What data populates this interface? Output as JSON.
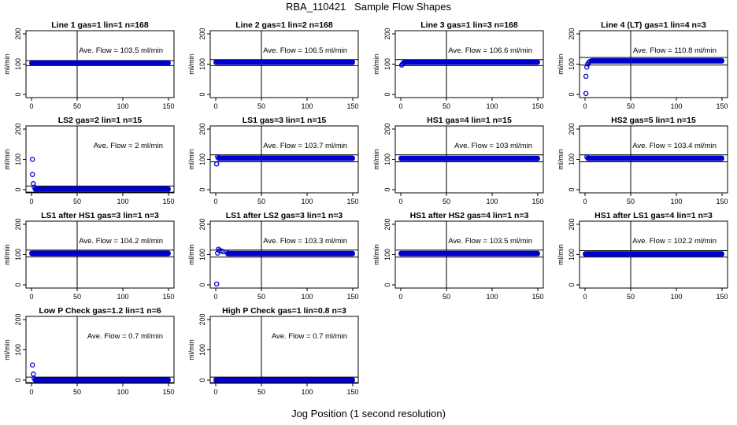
{
  "figure": {
    "title": "RBA_110421   Sample Flow Shapes",
    "xlabel": "Jog Position (1 second resolution)"
  },
  "colors": {
    "points": "#0000cc",
    "axis": "#000000"
  },
  "chart_data": [
    {
      "type": "scatter",
      "title": "Line 1 gas=1 lin=1 n=168",
      "ylabel": "ml/min",
      "annotation": "Ave. Flow = 103.5  ml/min",
      "xlim": [
        0,
        150
      ],
      "ylim": [
        0,
        200
      ],
      "xticks": [
        0,
        50,
        100,
        150
      ],
      "yticks": [
        0,
        100,
        200
      ],
      "vline": 50,
      "hlines": [
        95,
        112
      ],
      "flow": 103.5,
      "start": []
    },
    {
      "type": "scatter",
      "title": "Line 2 gas=1 lin=2 n=168",
      "ylabel": "ml/min",
      "annotation": "Ave. Flow = 106.5  ml/min",
      "xlim": [
        0,
        150
      ],
      "ylim": [
        0,
        200
      ],
      "xticks": [
        0,
        50,
        100,
        150
      ],
      "yticks": [
        0,
        100,
        200
      ],
      "vline": 50,
      "hlines": [
        95,
        115
      ],
      "flow": 106.5,
      "start": []
    },
    {
      "type": "scatter",
      "title": "Line 3 gas=1 lin=3 n=168",
      "ylabel": "ml/min",
      "annotation": "Ave. Flow = 106.6  ml/min",
      "xlim": [
        0,
        150
      ],
      "ylim": [
        0,
        200
      ],
      "xticks": [
        0,
        50,
        100,
        150
      ],
      "yticks": [
        0,
        100,
        200
      ],
      "vline": 50,
      "hlines": [
        95,
        115
      ],
      "flow": 106.6,
      "start": [
        [
          1,
          97
        ],
        [
          2,
          101
        ],
        [
          3,
          104
        ]
      ]
    },
    {
      "type": "scatter",
      "title": "Line 4 (LT) gas=1 lin=4 n=3",
      "ylabel": "ml/min",
      "annotation": "Ave. Flow = 110.8  ml/min",
      "xlim": [
        0,
        150
      ],
      "ylim": [
        0,
        200
      ],
      "xticks": [
        0,
        50,
        100,
        150
      ],
      "yticks": [
        0,
        100,
        200
      ],
      "vline": 50,
      "hlines": [
        97,
        122
      ],
      "flow": 110.8,
      "start": [
        [
          1,
          3
        ],
        [
          1,
          60
        ],
        [
          2,
          90
        ],
        [
          3,
          100
        ],
        [
          4,
          105
        ],
        [
          5,
          108
        ],
        [
          7,
          111
        ]
      ]
    },
    {
      "type": "scatter",
      "title": "LS2 gas=2 lin=1 n=15",
      "ylabel": "ml/min",
      "annotation": "Ave. Flow = 2  ml/min",
      "xlim": [
        0,
        150
      ],
      "ylim": [
        0,
        200
      ],
      "xticks": [
        0,
        50,
        100,
        150
      ],
      "yticks": [
        0,
        100,
        200
      ],
      "vline": 50,
      "hlines": [
        -8,
        12
      ],
      "flow": 2,
      "start": [
        [
          1,
          100
        ],
        [
          1,
          50
        ],
        [
          2,
          20
        ],
        [
          3,
          8
        ]
      ]
    },
    {
      "type": "scatter",
      "title": "LS1 gas=3 lin=1 n=15",
      "ylabel": "ml/min",
      "annotation": "Ave. Flow = 103.7  ml/min",
      "xlim": [
        0,
        150
      ],
      "ylim": [
        0,
        200
      ],
      "xticks": [
        0,
        50,
        100,
        150
      ],
      "yticks": [
        0,
        100,
        200
      ],
      "vline": 50,
      "hlines": [
        92,
        115
      ],
      "flow": 103.7,
      "start": [
        [
          1,
          85
        ],
        [
          2,
          108
        ]
      ]
    },
    {
      "type": "scatter",
      "title": "HS1 gas=4 lin=1 n=15",
      "ylabel": "ml/min",
      "annotation": "Ave. Flow = 103  ml/min",
      "xlim": [
        0,
        150
      ],
      "ylim": [
        0,
        200
      ],
      "xticks": [
        0,
        50,
        100,
        150
      ],
      "yticks": [
        0,
        100,
        200
      ],
      "vline": 50,
      "hlines": [
        92,
        115
      ],
      "flow": 103,
      "start": []
    },
    {
      "type": "scatter",
      "title": "HS2 gas=5 lin=1 n=15",
      "ylabel": "ml/min",
      "annotation": "Ave. Flow = 103.4  ml/min",
      "xlim": [
        0,
        150
      ],
      "ylim": [
        0,
        200
      ],
      "xticks": [
        0,
        50,
        100,
        150
      ],
      "yticks": [
        0,
        100,
        200
      ],
      "vline": 50,
      "hlines": [
        92,
        115
      ],
      "flow": 103.4,
      "start": [
        [
          2,
          108
        ]
      ]
    },
    {
      "type": "scatter",
      "title": "LS1 after HS1 gas=3 lin=1 n=3",
      "ylabel": "ml/min",
      "annotation": "Ave. Flow = 104.2  ml/min",
      "xlim": [
        0,
        150
      ],
      "ylim": [
        0,
        200
      ],
      "xticks": [
        0,
        50,
        100,
        150
      ],
      "yticks": [
        0,
        100,
        200
      ],
      "vline": 50,
      "hlines": [
        93,
        115
      ],
      "flow": 104.2,
      "start": []
    },
    {
      "type": "scatter",
      "title": "LS1 after LS2 gas=3 lin=1 n=3",
      "ylabel": "ml/min",
      "annotation": "Ave. Flow = 103.3  ml/min",
      "xlim": [
        0,
        150
      ],
      "ylim": [
        0,
        200
      ],
      "xticks": [
        0,
        50,
        100,
        150
      ],
      "yticks": [
        0,
        100,
        200
      ],
      "vline": 50,
      "hlines": [
        92,
        115
      ],
      "flow": 103.3,
      "start": [
        [
          1,
          3
        ],
        [
          2,
          105
        ],
        [
          3,
          118
        ],
        [
          4,
          113
        ],
        [
          6,
          112
        ],
        [
          8,
          110
        ],
        [
          12,
          108
        ]
      ]
    },
    {
      "type": "scatter",
      "title": "HS1 after HS2 gas=4 lin=1 n=3",
      "ylabel": "ml/min",
      "annotation": "Ave. Flow = 103.5  ml/min",
      "xlim": [
        0,
        150
      ],
      "ylim": [
        0,
        200
      ],
      "xticks": [
        0,
        50,
        100,
        150
      ],
      "yticks": [
        0,
        100,
        200
      ],
      "vline": 50,
      "hlines": [
        92,
        115
      ],
      "flow": 103.5,
      "start": []
    },
    {
      "type": "scatter",
      "title": "HS1 after LS1 gas=4 lin=1 n=3",
      "ylabel": "ml/min",
      "annotation": "Ave. Flow = 102.2  ml/min",
      "xlim": [
        0,
        150
      ],
      "ylim": [
        0,
        200
      ],
      "xticks": [
        0,
        50,
        100,
        150
      ],
      "yticks": [
        0,
        100,
        200
      ],
      "vline": 50,
      "hlines": [
        92,
        113
      ],
      "flow": 102.2,
      "start": []
    },
    {
      "type": "scatter",
      "title": "Low P Check gas=1.2 lin=1 n=6",
      "ylabel": "ml/min",
      "annotation": "Ave. Flow = 0.7  ml/min",
      "xlim": [
        0,
        150
      ],
      "ylim": [
        0,
        200
      ],
      "xticks": [
        0,
        50,
        100,
        150
      ],
      "yticks": [
        0,
        100,
        200
      ],
      "vline": 50,
      "hlines": [
        -8,
        10
      ],
      "flow": 0.7,
      "start": [
        [
          1,
          50
        ],
        [
          2,
          20
        ],
        [
          3,
          5
        ]
      ]
    },
    {
      "type": "scatter",
      "title": "High P Check gas=1 lin=0.8 n=3",
      "ylabel": "ml/min",
      "annotation": "Ave. Flow = 0.7  ml/min",
      "xlim": [
        0,
        150
      ],
      "ylim": [
        0,
        200
      ],
      "xticks": [
        0,
        50,
        100,
        150
      ],
      "yticks": [
        0,
        100,
        200
      ],
      "vline": 50,
      "hlines": [
        -8,
        10
      ],
      "flow": 0.7,
      "start": []
    }
  ]
}
